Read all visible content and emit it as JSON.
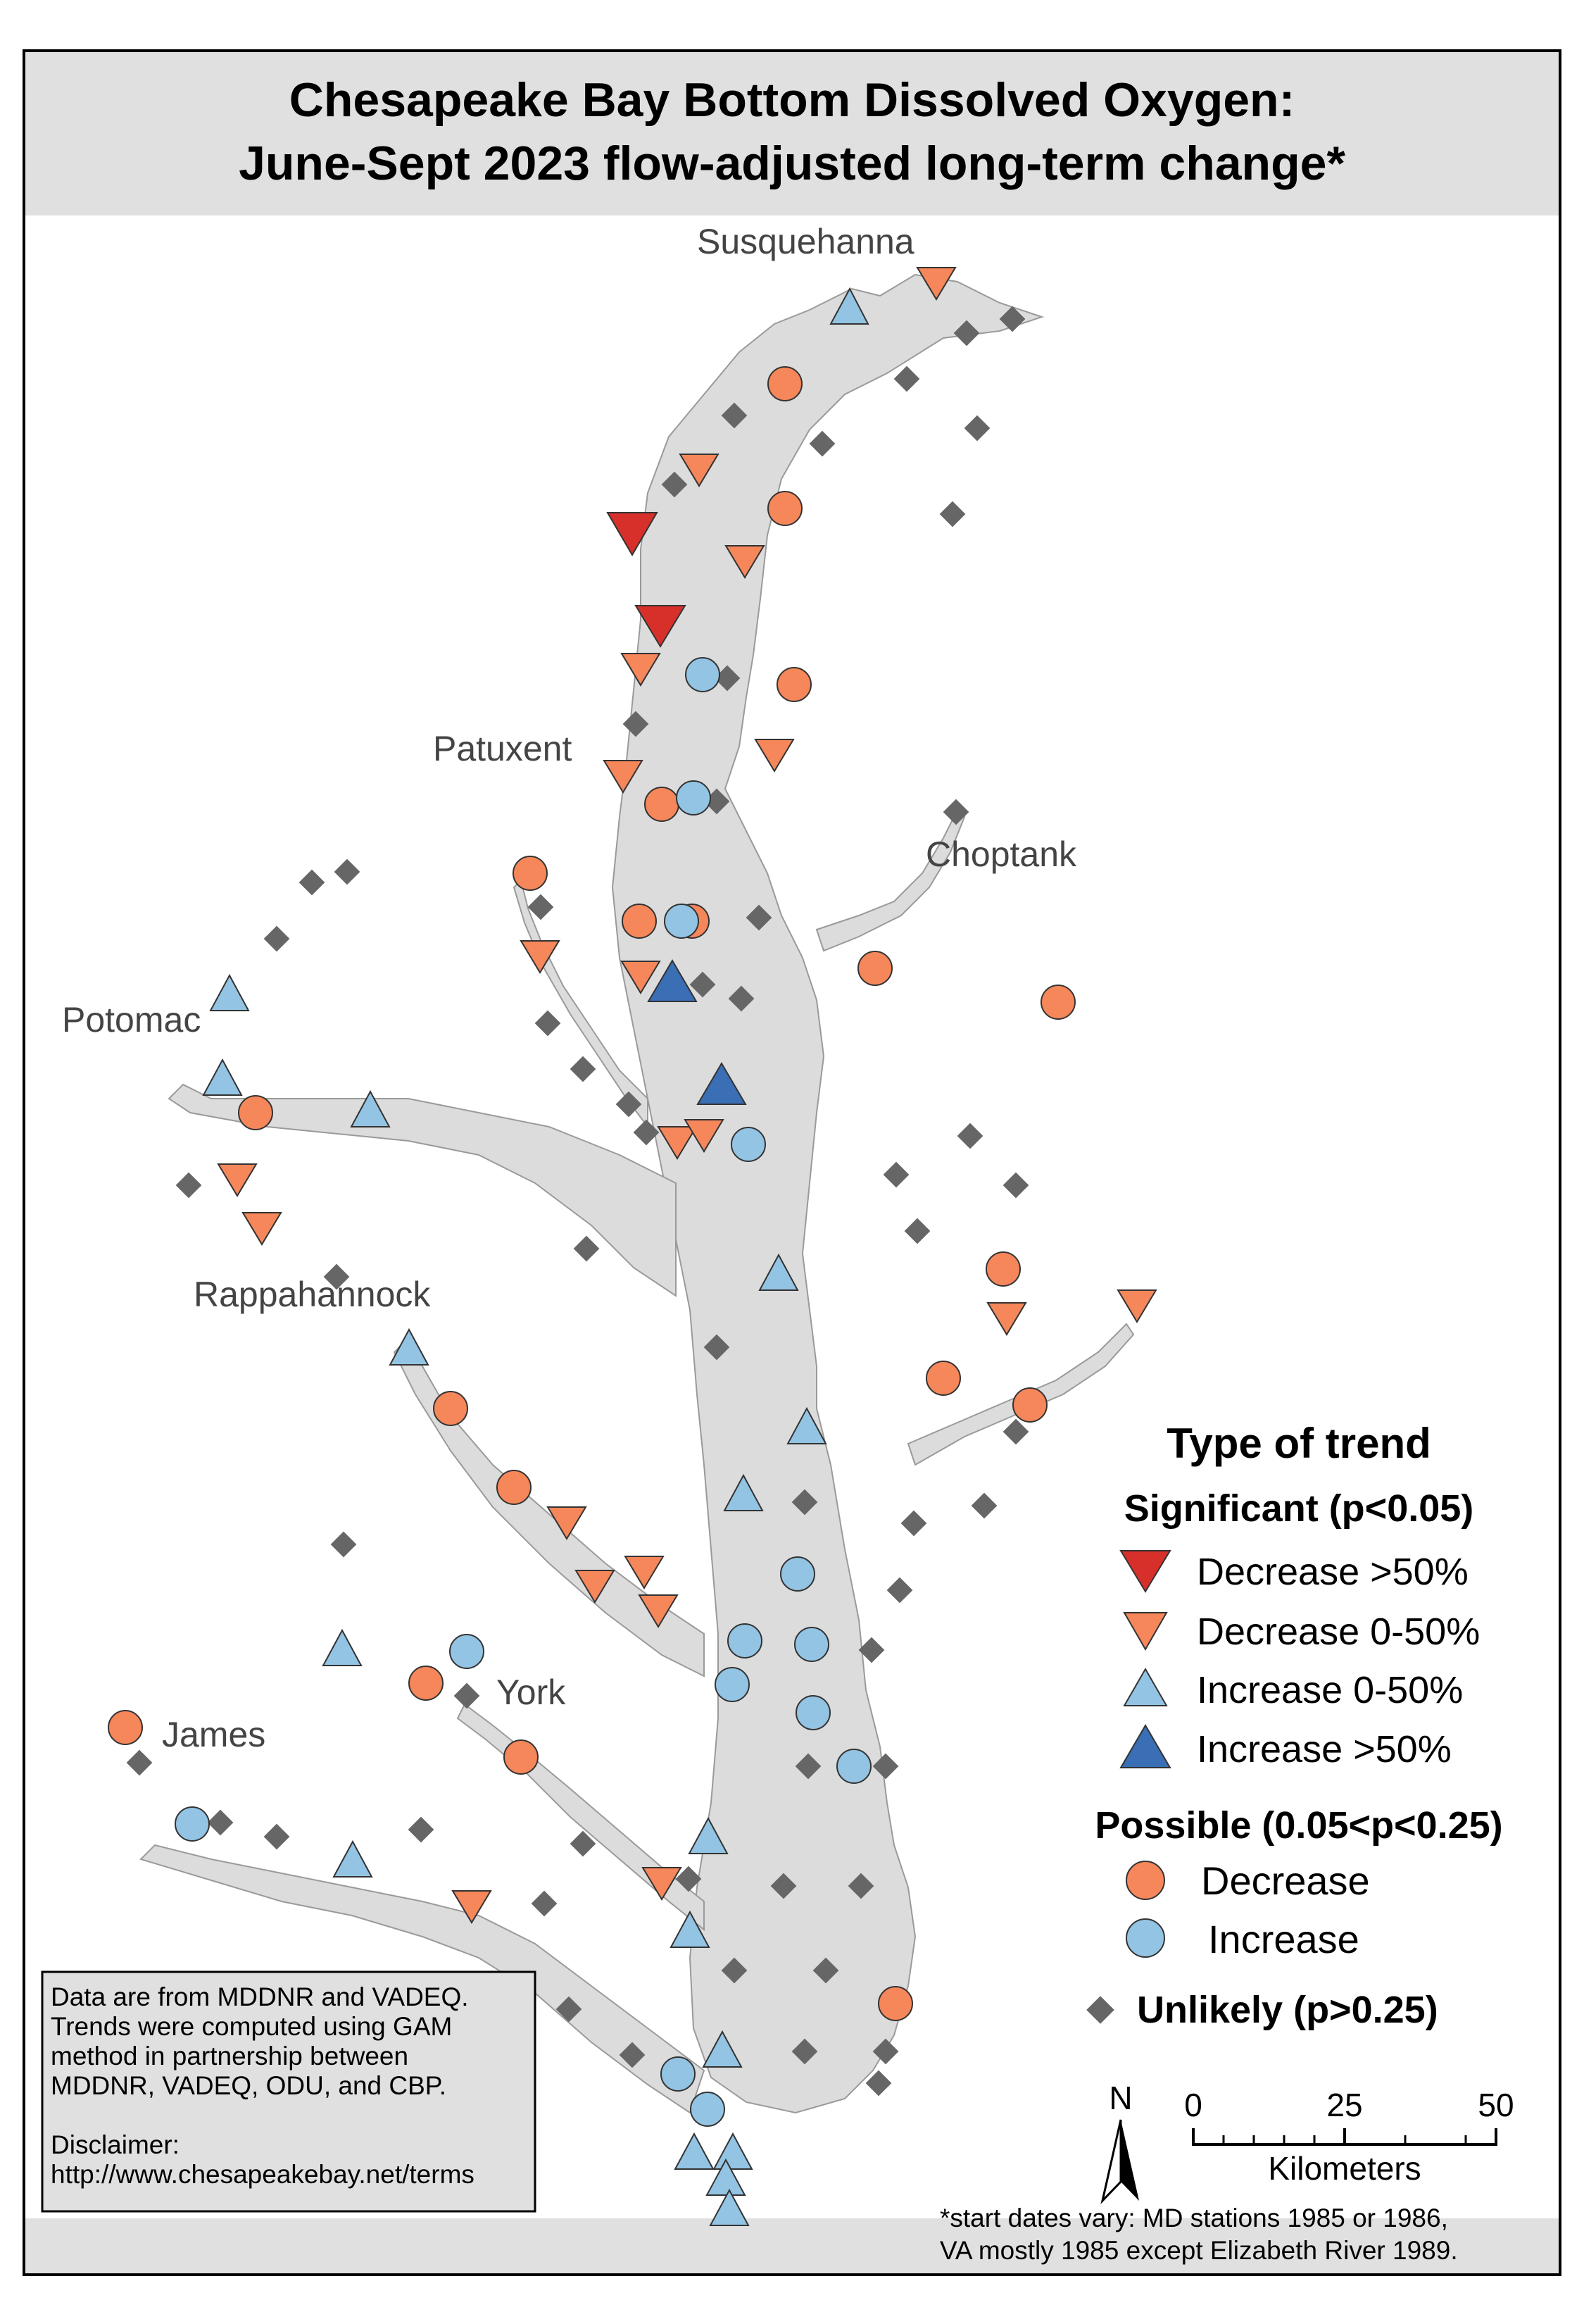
{
  "title": {
    "line1": "Chesapeake Bay Bottom Dissolved Oxygen:",
    "line2": "June-Sept 2023 flow-adjusted long-term change*"
  },
  "rivers": {
    "susquehanna": "Susquehanna",
    "patuxent": "Patuxent",
    "choptank": "Choptank",
    "potomac": "Potomac",
    "rappahannock": "Rappahannock",
    "york": "York",
    "james": "James"
  },
  "legend": {
    "heading": "Type of trend",
    "significant": "Significant (p<0.05)",
    "sig_decrease_major": "Decrease >50%",
    "sig_decrease_minor": "Decrease 0-50%",
    "sig_increase_minor": "Increase 0-50%",
    "sig_increase_major": "Increase >50%",
    "possible": "Possible (0.05<p<0.25)",
    "pos_decrease": "Decrease",
    "pos_increase": "Increase",
    "unlikely": "Unlikely (p>0.25)"
  },
  "colors": {
    "sig_decrease_major": "#d7302b",
    "sig_decrease_minor": "#f5875a",
    "sig_increase_minor": "#93c4e3",
    "sig_increase_major": "#3a6eb5",
    "pos_decrease": "#f5875a",
    "pos_increase": "#93c4e3",
    "unlikely": "#666666",
    "water": "#dcdcdc"
  },
  "scale": {
    "north": "N",
    "ticks": [
      "0",
      "25",
      "50"
    ],
    "unit": "Kilometers"
  },
  "info": {
    "line1": "Data are from MDDNR and VADEQ.",
    "line2": "Trends were computed using GAM",
    "line3": "method in partnership between",
    "line4": "MDDNR, VADEQ, ODU, and CBP.",
    "line5": "Disclaimer:",
    "line6": "http://www.chesapeakebay.net/terms"
  },
  "footnote": {
    "line1": "*start dates vary: MD stations 1985 or 1986,",
    "line2": "VA mostly 1985 except Elizabeth River 1989."
  }
}
